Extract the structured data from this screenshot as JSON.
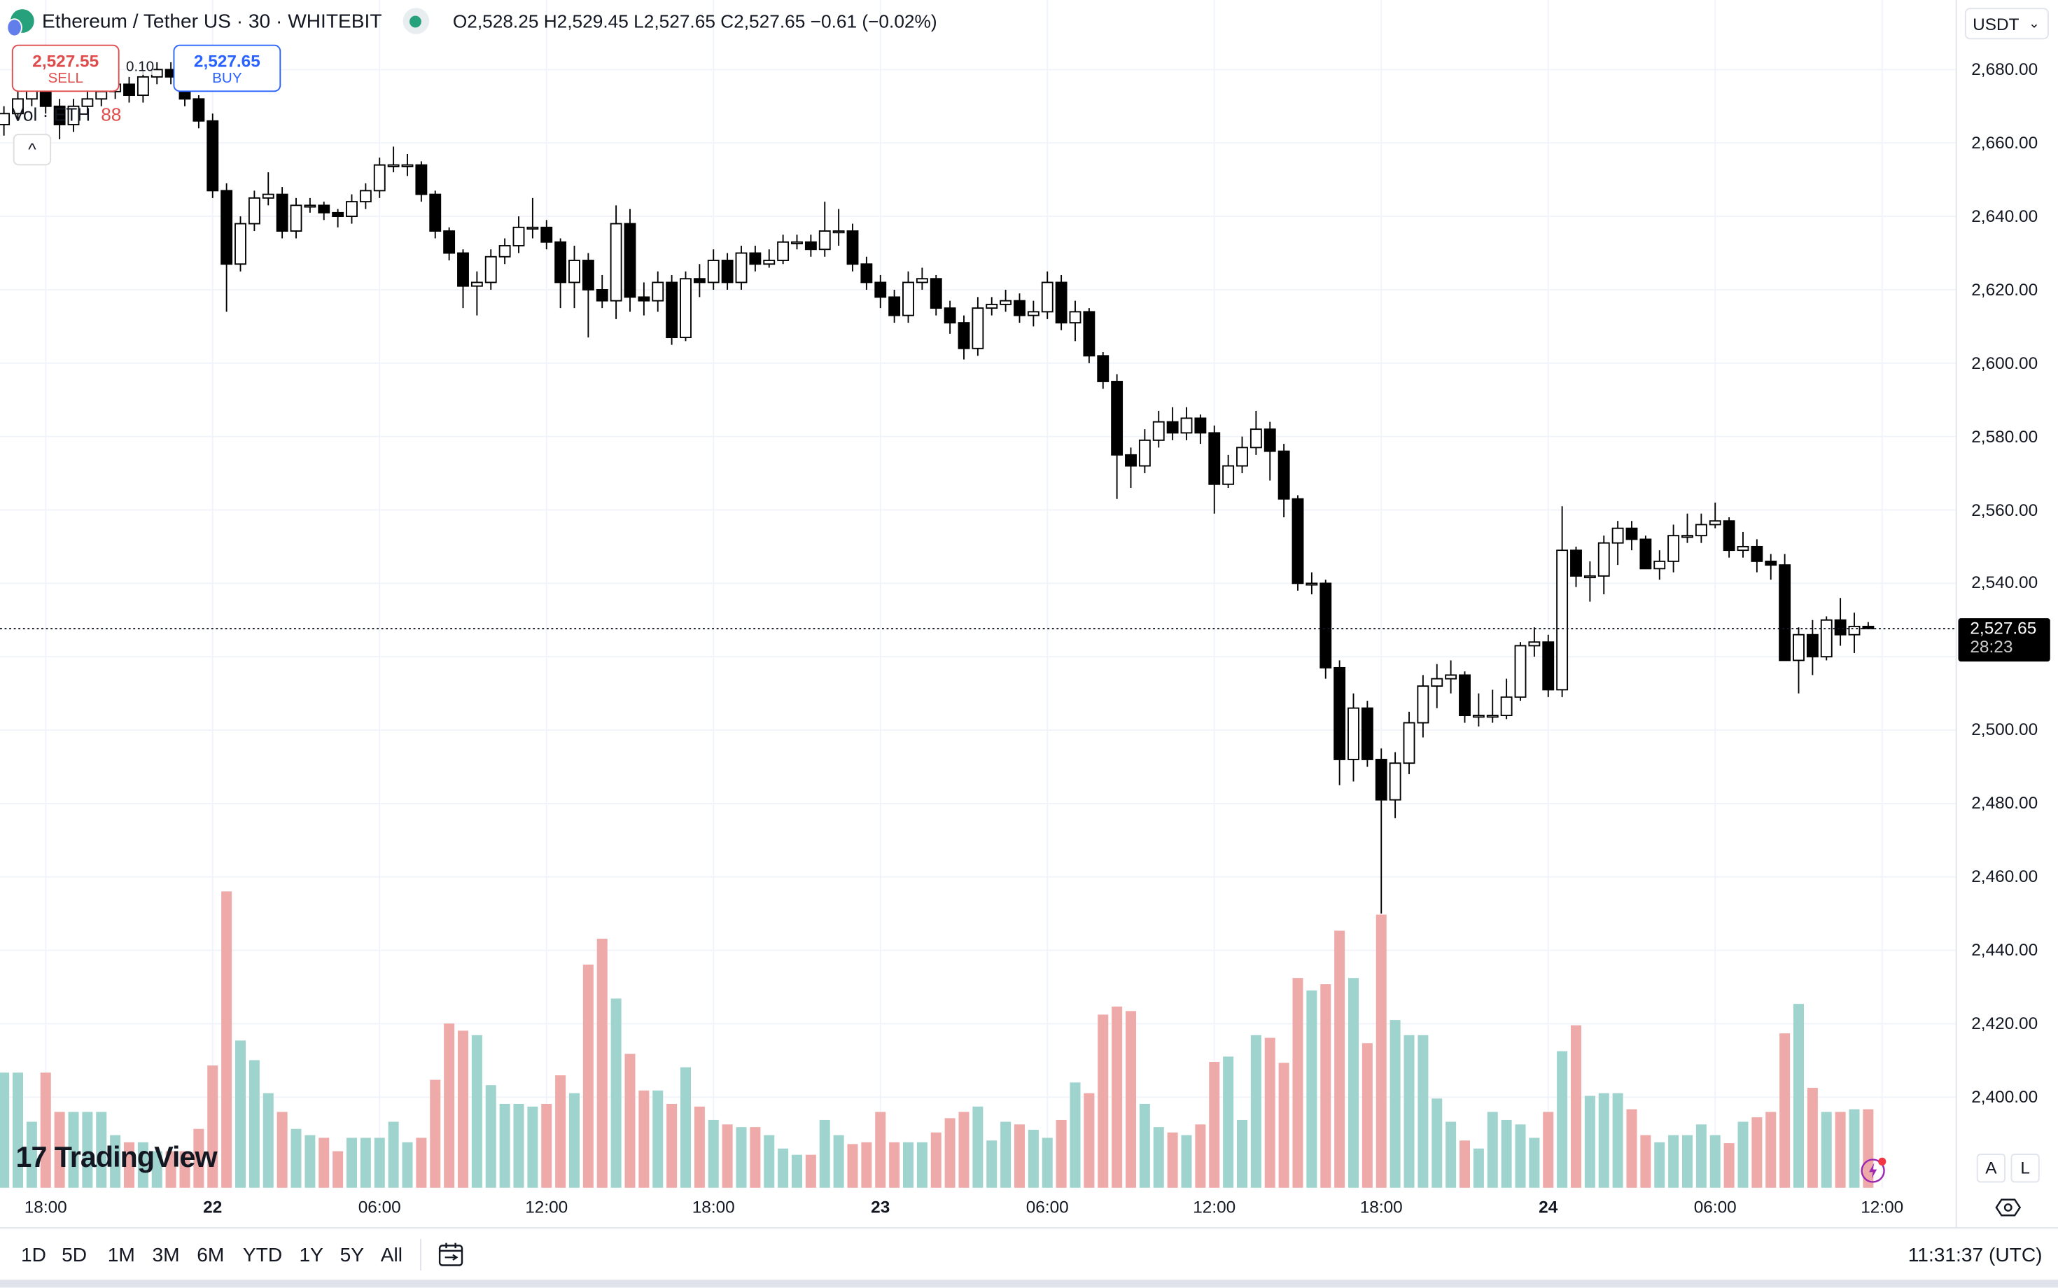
{
  "header": {
    "title": "Ethereum / Tether US · 30 · WHITEBIT",
    "ohlc": "O2,528.25 H2,529.45 L2,527.65 C2,527.65 −0.61 (−0.02%)",
    "status_color": "#26a17b"
  },
  "trade": {
    "sell_price": "2,527.55",
    "sell_label": "SELL",
    "buy_price": "2,527.65",
    "buy_label": "BUY",
    "spread": "0.10"
  },
  "volume_legend": {
    "label": "Vol · ETH",
    "value": "88"
  },
  "price_axis": {
    "currency": "USDT",
    "ticks": [
      "2,680.00",
      "2,660.00",
      "2,640.00",
      "2,620.00",
      "2,600.00",
      "2,580.00",
      "2,560.00",
      "2,540.00",
      "2,500.00",
      "2,480.00",
      "2,460.00",
      "2,440.00",
      "2,420.00",
      "2,400.00"
    ],
    "last_price": "2,527.65",
    "countdown": "28:23",
    "auto_label": "A",
    "log_label": "L"
  },
  "time_axis": {
    "ticks": [
      {
        "label": "18:00",
        "bold": false,
        "candle": 3
      },
      {
        "label": "22",
        "bold": true,
        "candle": 15
      },
      {
        "label": "06:00",
        "bold": false,
        "candle": 27
      },
      {
        "label": "12:00",
        "bold": false,
        "candle": 39
      },
      {
        "label": "18:00",
        "bold": false,
        "candle": 51
      },
      {
        "label": "23",
        "bold": true,
        "candle": 63
      },
      {
        "label": "06:00",
        "bold": false,
        "candle": 75
      },
      {
        "label": "12:00",
        "bold": false,
        "candle": 87
      },
      {
        "label": "18:00",
        "bold": false,
        "candle": 99
      },
      {
        "label": "24",
        "bold": true,
        "candle": 111
      },
      {
        "label": "06:00",
        "bold": false,
        "candle": 123
      },
      {
        "label": "12:00",
        "bold": false,
        "candle": 135
      }
    ]
  },
  "bottom_bar": {
    "ranges": [
      "1D",
      "5D",
      "1M",
      "3M",
      "6M",
      "YTD",
      "1Y",
      "5Y",
      "All"
    ],
    "clock": "11:31:37 (UTC)"
  },
  "branding": "TradingView",
  "chart_data": {
    "type": "candlestick",
    "symbol": "Ethereum / Tether US",
    "interval": "30",
    "ylim": [
      2385,
      2690
    ],
    "y_ticks": [
      2400,
      2420,
      2440,
      2460,
      2480,
      2500,
      2520,
      2540,
      2560,
      2580,
      2600,
      2620,
      2640,
      2660,
      2680
    ],
    "last_price": 2527.65,
    "grid": true,
    "colors": {
      "up_body": "#ffffff",
      "down_body": "#000000",
      "wick": "#000000",
      "vol_up": "#9fd4ce",
      "vol_down": "#eeaaa8"
    },
    "candles_ohlc": [
      [
        2665,
        2670,
        2662,
        2668
      ],
      [
        2668,
        2674,
        2666,
        2672
      ],
      [
        2672,
        2677,
        2670,
        2675
      ],
      [
        2675,
        2677,
        2668,
        2670
      ],
      [
        2670,
        2672,
        2661,
        2665
      ],
      [
        2665,
        2672,
        2663,
        2670
      ],
      [
        2670,
        2674,
        2668,
        2672
      ],
      [
        2672,
        2676,
        2670,
        2674
      ],
      [
        2674,
        2678,
        2672,
        2676
      ],
      [
        2676,
        2678,
        2671,
        2673
      ],
      [
        2673,
        2680,
        2671,
        2678
      ],
      [
        2678,
        2682,
        2676,
        2680
      ],
      [
        2680,
        2682,
        2676,
        2678
      ],
      [
        2678,
        2679,
        2670,
        2672
      ],
      [
        2672,
        2673,
        2664,
        2666
      ],
      [
        2666,
        2668,
        2645,
        2647
      ],
      [
        2647,
        2649,
        2614,
        2627
      ],
      [
        2627,
        2640,
        2625,
        2638
      ],
      [
        2638,
        2647,
        2636,
        2645
      ],
      [
        2645,
        2652,
        2643,
        2646
      ],
      [
        2646,
        2648,
        2634,
        2636
      ],
      [
        2636,
        2645,
        2634,
        2643
      ],
      [
        2643,
        2645,
        2641,
        2643
      ],
      [
        2643,
        2644,
        2639,
        2641
      ],
      [
        2641,
        2642,
        2637,
        2640
      ],
      [
        2640,
        2646,
        2638,
        2644
      ],
      [
        2644,
        2649,
        2642,
        2647
      ],
      [
        2647,
        2656,
        2645,
        2654
      ],
      [
        2654,
        2659,
        2652,
        2654
      ],
      [
        2654,
        2657,
        2651,
        2654
      ],
      [
        2654,
        2655,
        2644,
        2646
      ],
      [
        2646,
        2647,
        2634,
        2636
      ],
      [
        2636,
        2637,
        2628,
        2630
      ],
      [
        2630,
        2631,
        2615,
        2621
      ],
      [
        2621,
        2625,
        2613,
        2622
      ],
      [
        2622,
        2631,
        2620,
        2629
      ],
      [
        2629,
        2634,
        2627,
        2632
      ],
      [
        2632,
        2640,
        2630,
        2637
      ],
      [
        2637,
        2645,
        2634,
        2637
      ],
      [
        2637,
        2639,
        2631,
        2633
      ],
      [
        2633,
        2634,
        2615,
        2622
      ],
      [
        2622,
        2632,
        2615,
        2628
      ],
      [
        2628,
        2630,
        2607,
        2620
      ],
      [
        2620,
        2624,
        2615,
        2617
      ],
      [
        2617,
        2643,
        2612,
        2638
      ],
      [
        2638,
        2642,
        2614,
        2618
      ],
      [
        2618,
        2622,
        2613,
        2617
      ],
      [
        2617,
        2625,
        2614,
        2622
      ],
      [
        2622,
        2624,
        2605,
        2607
      ],
      [
        2607,
        2625,
        2606,
        2623
      ],
      [
        2623,
        2627,
        2618,
        2622
      ],
      [
        2622,
        2631,
        2620,
        2628
      ],
      [
        2628,
        2630,
        2620,
        2622
      ],
      [
        2622,
        2632,
        2620,
        2630
      ],
      [
        2630,
        2632,
        2625,
        2627
      ],
      [
        2627,
        2631,
        2626,
        2628
      ],
      [
        2628,
        2635,
        2627,
        2633
      ],
      [
        2633,
        2635,
        2631,
        2633
      ],
      [
        2633,
        2635,
        2629,
        2631
      ],
      [
        2631,
        2644,
        2629,
        2636
      ],
      [
        2636,
        2642,
        2632,
        2636
      ],
      [
        2636,
        2638,
        2625,
        2627
      ],
      [
        2627,
        2629,
        2620,
        2622
      ],
      [
        2622,
        2624,
        2615,
        2618
      ],
      [
        2618,
        2620,
        2611,
        2613
      ],
      [
        2613,
        2625,
        2611,
        2622
      ],
      [
        2622,
        2626,
        2620,
        2623
      ],
      [
        2623,
        2624,
        2613,
        2615
      ],
      [
        2615,
        2617,
        2608,
        2611
      ],
      [
        2611,
        2613,
        2601,
        2604
      ],
      [
        2604,
        2618,
        2602,
        2615
      ],
      [
        2615,
        2618,
        2613,
        2616
      ],
      [
        2616,
        2620,
        2614,
        2617
      ],
      [
        2617,
        2619,
        2611,
        2613
      ],
      [
        2613,
        2617,
        2610,
        2614
      ],
      [
        2614,
        2625,
        2612,
        2622
      ],
      [
        2622,
        2624,
        2609,
        2611
      ],
      [
        2611,
        2617,
        2606,
        2614
      ],
      [
        2614,
        2615,
        2600,
        2602
      ],
      [
        2602,
        2603,
        2593,
        2595
      ],
      [
        2595,
        2597,
        2563,
        2575
      ],
      [
        2575,
        2577,
        2566,
        2572
      ],
      [
        2572,
        2582,
        2570,
        2579
      ],
      [
        2579,
        2587,
        2577,
        2584
      ],
      [
        2584,
        2588,
        2579,
        2581
      ],
      [
        2581,
        2588,
        2579,
        2585
      ],
      [
        2585,
        2586,
        2578,
        2581
      ],
      [
        2581,
        2583,
        2559,
        2567
      ],
      [
        2567,
        2575,
        2566,
        2572
      ],
      [
        2572,
        2580,
        2570,
        2577
      ],
      [
        2577,
        2587,
        2575,
        2582
      ],
      [
        2582,
        2584,
        2568,
        2576
      ],
      [
        2576,
        2578,
        2558,
        2563
      ],
      [
        2563,
        2564,
        2538,
        2540
      ],
      [
        2540,
        2543,
        2537,
        2540
      ],
      [
        2540,
        2541,
        2514,
        2517
      ],
      [
        2517,
        2519,
        2485,
        2492
      ],
      [
        2492,
        2510,
        2486,
        2506
      ],
      [
        2506,
        2508,
        2490,
        2492
      ],
      [
        2492,
        2495,
        2450,
        2481
      ],
      [
        2481,
        2494,
        2476,
        2491
      ],
      [
        2491,
        2505,
        2488,
        2502
      ],
      [
        2502,
        2515,
        2498,
        2512
      ],
      [
        2512,
        2518,
        2506,
        2514
      ],
      [
        2514,
        2519,
        2510,
        2515
      ],
      [
        2515,
        2516,
        2502,
        2504
      ],
      [
        2504,
        2510,
        2501,
        2504
      ],
      [
        2504,
        2511,
        2502,
        2504
      ],
      [
        2504,
        2514,
        2503,
        2509
      ],
      [
        2509,
        2524,
        2508,
        2523
      ],
      [
        2523,
        2528,
        2520,
        2524
      ],
      [
        2524,
        2526,
        2509,
        2511
      ],
      [
        2511,
        2561,
        2509,
        2549
      ],
      [
        2549,
        2550,
        2539,
        2542
      ],
      [
        2542,
        2546,
        2535,
        2542
      ],
      [
        2542,
        2553,
        2537,
        2551
      ],
      [
        2551,
        2557,
        2545,
        2555
      ],
      [
        2555,
        2557,
        2549,
        2552
      ],
      [
        2552,
        2553,
        2544,
        2544
      ],
      [
        2544,
        2549,
        2541,
        2546
      ],
      [
        2546,
        2556,
        2543,
        2553
      ],
      [
        2553,
        2559,
        2551,
        2553
      ],
      [
        2553,
        2559,
        2551,
        2556
      ],
      [
        2556,
        2562,
        2555,
        2557
      ],
      [
        2557,
        2558,
        2547,
        2549
      ],
      [
        2549,
        2554,
        2547,
        2550
      ],
      [
        2550,
        2552,
        2543,
        2546
      ],
      [
        2546,
        2548,
        2541,
        2545
      ],
      [
        2545,
        2548,
        2519,
        2519
      ],
      [
        2519,
        2528,
        2510,
        2526
      ],
      [
        2526,
        2530,
        2515,
        2520
      ],
      [
        2520,
        2531,
        2519,
        2530
      ],
      [
        2530,
        2536,
        2523,
        2526
      ],
      [
        2526,
        2532,
        2521,
        2528.25
      ],
      [
        2528.25,
        2529.45,
        2527.65,
        2527.65
      ]
    ],
    "volume_eth": [
      129,
      129,
      74,
      129,
      85,
      85,
      85,
      85,
      59,
      51,
      51,
      41,
      41,
      41,
      66,
      137,
      332,
      165,
      143,
      106,
      85,
      66,
      59,
      56,
      41,
      56,
      56,
      56,
      74,
      51,
      56,
      121,
      184,
      176,
      171,
      115,
      94,
      94,
      91,
      94,
      126,
      106,
      250,
      279,
      212,
      150,
      109,
      109,
      94,
      135,
      91,
      76,
      71,
      68,
      68,
      59,
      44,
      37,
      37,
      76,
      59,
      49,
      51,
      85,
      51,
      51,
      51,
      62,
      78,
      85,
      91,
      53,
      74,
      71,
      65,
      56,
      76,
      118,
      106,
      194,
      203,
      198,
      94,
      68,
      62,
      59,
      71,
      141,
      147,
      76,
      171,
      168,
      140,
      235,
      221,
      228,
      288,
      235,
      162,
      306,
      188,
      171,
      171,
      100,
      74,
      53,
      44,
      85,
      76,
      71,
      56,
      85,
      153,
      182,
      103,
      106,
      106,
      88,
      59,
      51,
      59,
      59,
      71,
      59,
      50,
      74,
      79,
      85,
      173,
      206,
      112,
      85,
      85,
      88,
      88
    ]
  }
}
